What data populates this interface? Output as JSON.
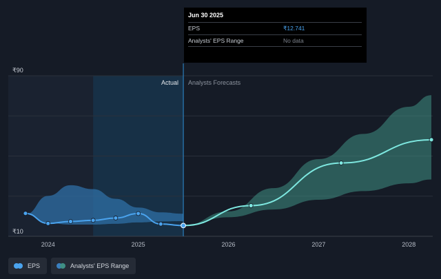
{
  "chart_data": {
    "type": "line",
    "ylim": [
      10,
      90
    ],
    "xlim": [
      2023.65,
      2028.25
    ],
    "y_tick_labels": [
      "₹90",
      "₹10"
    ],
    "x_tick_labels": [
      "2024",
      "2025",
      "2026",
      "2027",
      "2028"
    ],
    "x_ticks": [
      2024,
      2025,
      2026,
      2027,
      2028
    ],
    "actual_label": "Actual",
    "forecast_label": "Analysts Forecasts",
    "divider_x": 2025.5,
    "shade_start_x": 2024.5,
    "grid": true,
    "series": [
      {
        "name": "EPS",
        "color": "#4aa3ee",
        "points": [
          {
            "x": 2023.75,
            "y": 19.0
          },
          {
            "x": 2024.0,
            "y": 13.8
          },
          {
            "x": 2024.25,
            "y": 14.8
          },
          {
            "x": 2024.5,
            "y": 15.4
          },
          {
            "x": 2024.75,
            "y": 16.6
          },
          {
            "x": 2025.0,
            "y": 18.9
          },
          {
            "x": 2025.25,
            "y": 13.5
          },
          {
            "x": 2025.5,
            "y": 12.7
          }
        ]
      },
      {
        "name": "EPS Forecast",
        "color": "#7ee8e0",
        "points": [
          {
            "x": 2025.5,
            "y": 12.7
          },
          {
            "x": 2026.25,
            "y": 23.0
          },
          {
            "x": 2027.25,
            "y": 45.0
          },
          {
            "x": 2028.25,
            "y": 57.0
          }
        ]
      }
    ],
    "ranges": [
      {
        "name": "Analysts' EPS Range",
        "color": "#2f6fa6",
        "upper": [
          {
            "x": 2023.75,
            "y": 18.5
          },
          {
            "x": 2024.0,
            "y": 28.0
          },
          {
            "x": 2024.25,
            "y": 33.5
          },
          {
            "x": 2024.5,
            "y": 31.5
          },
          {
            "x": 2024.75,
            "y": 26.5
          },
          {
            "x": 2025.0,
            "y": 22.0
          },
          {
            "x": 2025.25,
            "y": 19.5
          },
          {
            "x": 2025.5,
            "y": 18.8
          }
        ],
        "lower": [
          {
            "x": 2023.75,
            "y": 18.5
          },
          {
            "x": 2024.0,
            "y": 14.0
          },
          {
            "x": 2024.25,
            "y": 13.2
          },
          {
            "x": 2024.5,
            "y": 13.2
          },
          {
            "x": 2024.75,
            "y": 13.6
          },
          {
            "x": 2025.0,
            "y": 14.3
          },
          {
            "x": 2025.25,
            "y": 14.8
          },
          {
            "x": 2025.5,
            "y": 15.0
          }
        ]
      },
      {
        "name": "Analysts' EPS Range Forecast",
        "color": "#3f8f84",
        "upper": [
          {
            "x": 2025.5,
            "y": 12.7
          },
          {
            "x": 2026.0,
            "y": 20.0
          },
          {
            "x": 2026.5,
            "y": 32.0
          },
          {
            "x": 2027.0,
            "y": 47.0
          },
          {
            "x": 2027.5,
            "y": 60.0
          },
          {
            "x": 2028.0,
            "y": 74.0
          },
          {
            "x": 2028.25,
            "y": 80.0
          }
        ],
        "lower": [
          {
            "x": 2025.5,
            "y": 12.7
          },
          {
            "x": 2026.0,
            "y": 17.0
          },
          {
            "x": 2026.5,
            "y": 21.0
          },
          {
            "x": 2027.0,
            "y": 26.0
          },
          {
            "x": 2027.5,
            "y": 30.5
          },
          {
            "x": 2028.0,
            "y": 34.5
          },
          {
            "x": 2028.25,
            "y": 36.5
          }
        ]
      }
    ]
  },
  "tooltip": {
    "date": "Jun 30 2025",
    "rows": [
      {
        "label": "EPS",
        "value": "₹12.741"
      },
      {
        "label": "Analysts' EPS Range",
        "value": "No data"
      }
    ]
  },
  "legend": {
    "items": [
      {
        "label": "EPS",
        "color_a": "#4aa3ee",
        "color_b": "#4aa3ee"
      },
      {
        "label": "Analysts' EPS Range",
        "color_a": "#3a7fbf",
        "color_b": "#3f8f84"
      }
    ]
  }
}
